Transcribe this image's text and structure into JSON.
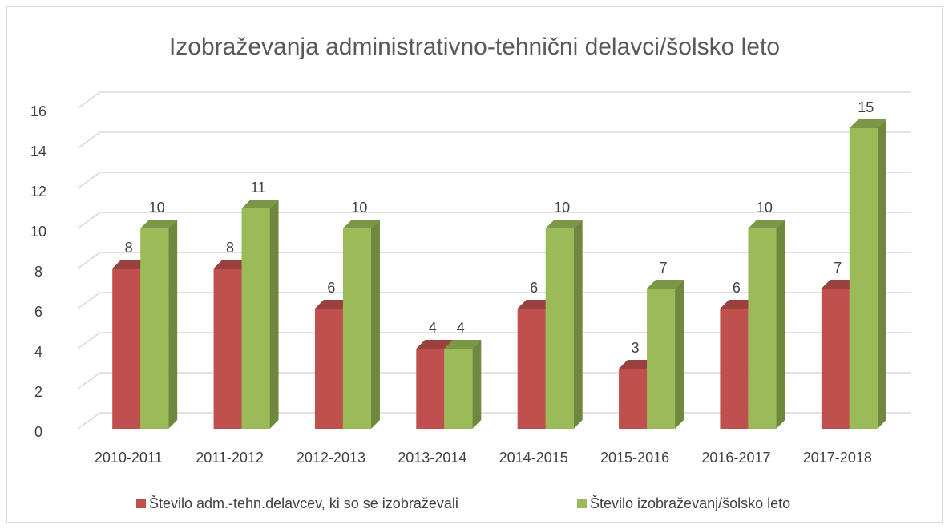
{
  "chart_data": {
    "type": "bar",
    "title": "Izobraževanja administrativno-tehnični delavci/šolsko leto",
    "categories": [
      "2010-2011",
      "2011-2012",
      "2012-2013",
      "2013-2014",
      "2014-2015",
      "2015-2016",
      "2016-2017",
      "2017-2018"
    ],
    "series": [
      {
        "name": "Število adm.-tehn.delavcev, ki so se izobraževali",
        "color": "#c0504d",
        "values": [
          8,
          8,
          6,
          4,
          6,
          3,
          6,
          7
        ]
      },
      {
        "name": "Število izobraževanj/šolsko leto",
        "color": "#9bbb59",
        "values": [
          10,
          11,
          10,
          4,
          10,
          7,
          10,
          15
        ]
      }
    ],
    "ylim": [
      0,
      16
    ],
    "yticks": [
      0,
      2,
      4,
      6,
      8,
      10,
      12,
      14,
      16
    ],
    "grid": true,
    "legend": "bottom"
  }
}
